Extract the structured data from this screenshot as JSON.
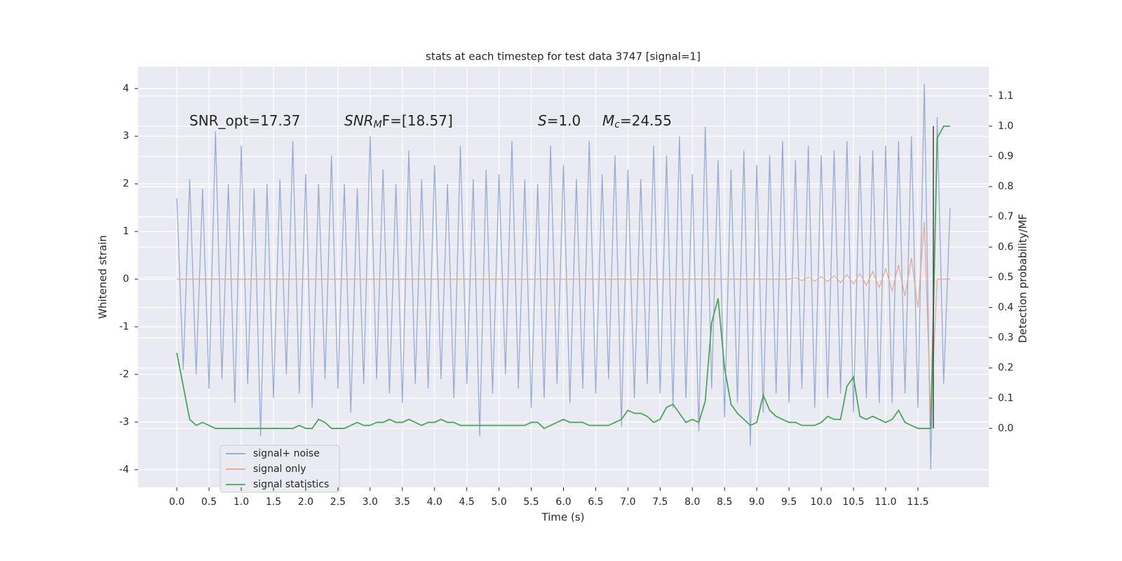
{
  "chart_data": {
    "type": "line",
    "title": "stats at each timestep for test data 3747 [signal=1]",
    "xlabel": "Time (s)",
    "ylabel": "Whitened strain",
    "y2label": "Detection probability/MF",
    "xlim": [
      -0.6,
      12.6
    ],
    "ylim": [
      -4.37,
      4.46
    ],
    "y2lim": [
      -0.195,
      1.197
    ],
    "grid": true,
    "legend": "lower left",
    "xticks": [
      {
        "value": 0,
        "label": "0.0"
      },
      0.5,
      {
        "value": 1,
        "label": "1.0"
      },
      1.5,
      {
        "value": 2,
        "label": "2.0"
      },
      2.5,
      {
        "value": 3,
        "label": "3.0"
      },
      3.5,
      {
        "value": 4,
        "label": "4.0"
      },
      4.5,
      {
        "value": 5,
        "label": "5.0"
      },
      5.5,
      {
        "value": 6,
        "label": "6.0"
      },
      6.5,
      {
        "value": 7,
        "label": "7.0"
      },
      7.5,
      {
        "value": 8,
        "label": "8.0"
      },
      8.5,
      {
        "value": 9,
        "label": "9.0"
      },
      9.5,
      {
        "value": 10,
        "label": "10.0"
      },
      10.5,
      {
        "value": 11,
        "label": "11.0"
      },
      11.5
    ],
    "yticks": [
      -4,
      -3,
      -2,
      -1,
      0,
      1,
      2,
      3,
      4
    ],
    "y2ticks": [
      {
        "value": 0,
        "label": "0.0"
      },
      0.1,
      0.2,
      0.3,
      0.4,
      0.5,
      0.6,
      0.7,
      0.8,
      0.9,
      {
        "value": 1,
        "label": "1.0"
      },
      1.1
    ],
    "annotations": [
      {
        "text": "SNR_opt=17.37"
      },
      {
        "italic": "SNR",
        "sub": "M",
        "text": "F=[18.57]"
      },
      {
        "italic": "S",
        "text": "=1.0"
      },
      {
        "italic": "M",
        "sub": "c",
        "text": "=24.55"
      }
    ],
    "vline": {
      "x": 11.74,
      "ymin": 0,
      "ymax": 1,
      "color": "#444444"
    },
    "x": [
      0.0,
      0.1,
      0.2,
      0.3,
      0.4,
      0.5,
      0.6,
      0.7,
      0.8,
      0.9,
      1.0,
      1.1,
      1.2,
      1.3,
      1.4,
      1.5,
      1.6,
      1.7,
      1.8,
      1.9,
      2.0,
      2.1,
      2.2,
      2.3,
      2.4,
      2.5,
      2.6,
      2.7,
      2.8,
      2.9,
      3.0,
      3.1,
      3.2,
      3.3,
      3.4,
      3.5,
      3.6,
      3.7,
      3.8,
      3.9,
      4.0,
      4.1,
      4.2,
      4.3,
      4.4,
      4.5,
      4.6,
      4.7,
      4.8,
      4.9,
      5.0,
      5.1,
      5.2,
      5.3,
      5.4,
      5.5,
      5.6,
      5.7,
      5.8,
      5.9,
      6.0,
      6.1,
      6.2,
      6.3,
      6.4,
      6.5,
      6.6,
      6.7,
      6.8,
      6.9,
      7.0,
      7.1,
      7.2,
      7.3,
      7.4,
      7.5,
      7.6,
      7.7,
      7.8,
      7.9,
      8.0,
      8.1,
      8.2,
      8.3,
      8.4,
      8.5,
      8.6,
      8.7,
      8.8,
      8.9,
      9.0,
      9.1,
      9.2,
      9.3,
      9.4,
      9.5,
      9.6,
      9.7,
      9.8,
      9.9,
      10.0,
      10.1,
      10.2,
      10.3,
      10.4,
      10.5,
      10.6,
      10.7,
      10.8,
      10.9,
      11.0,
      11.1,
      11.2,
      11.3,
      11.4,
      11.5,
      11.6,
      11.7,
      11.8,
      11.9,
      12.0
    ],
    "series": [
      {
        "name": "signal+ noise",
        "color": "#8fa5d0",
        "values": [
          1.7,
          -1.9,
          2.1,
          -2.0,
          1.9,
          -2.3,
          3.1,
          -2.1,
          2.0,
          -2.6,
          2.8,
          -2.2,
          1.9,
          -3.3,
          2.0,
          -2.5,
          2.1,
          -2.0,
          2.9,
          -2.4,
          2.2,
          -2.7,
          2.0,
          -2.1,
          2.6,
          -2.3,
          2.0,
          -2.8,
          1.9,
          -2.2,
          3.0,
          -2.1,
          2.3,
          -2.4,
          2.0,
          -2.6,
          2.7,
          -2.2,
          2.1,
          -2.3,
          2.4,
          -2.1,
          2.0,
          -2.5,
          2.8,
          -2.2,
          2.1,
          -3.3,
          2.3,
          -2.4,
          2.2,
          -2.0,
          2.9,
          -2.3,
          2.1,
          -2.7,
          2.0,
          -2.5,
          2.8,
          -2.2,
          2.4,
          -2.6,
          2.1,
          -2.3,
          2.9,
          -2.4,
          2.2,
          -2.1,
          2.6,
          -3.1,
          2.3,
          -2.5,
          2.1,
          -2.2,
          2.8,
          -2.4,
          2.6,
          -2.7,
          3.0,
          -2.5,
          2.2,
          -3.2,
          3.2,
          -2.3,
          2.5,
          -2.9,
          2.3,
          -2.6,
          2.7,
          -3.5,
          2.4,
          -2.8,
          2.6,
          -2.4,
          2.9,
          -2.6,
          2.5,
          -2.3,
          2.8,
          -2.7,
          2.6,
          -2.5,
          2.7,
          -2.4,
          2.9,
          -2.8,
          2.6,
          -2.5,
          2.7,
          -2.6,
          2.8,
          -2.6,
          2.9,
          -2.4,
          3.0,
          -2.7,
          4.1,
          -4.0,
          3.4,
          -2.2,
          1.5
        ]
      },
      {
        "name": "signal only",
        "color": "#e3a68c",
        "values": [
          0,
          0,
          0,
          0,
          0,
          0,
          0,
          0,
          0,
          0,
          0,
          0,
          0,
          0,
          0,
          0,
          0,
          0,
          0,
          0,
          0,
          0,
          0,
          0,
          0,
          0,
          0,
          0,
          0,
          0,
          0,
          0,
          0,
          0,
          0,
          0,
          0,
          0,
          0,
          0,
          0,
          0,
          0,
          0,
          0,
          0,
          0,
          0,
          0,
          0,
          0,
          0,
          0,
          0,
          0,
          0,
          0,
          0,
          0,
          0,
          0,
          0,
          0,
          0,
          0,
          0,
          0,
          0,
          0,
          0,
          0,
          0,
          0,
          0,
          0,
          0,
          0,
          0,
          0,
          0,
          0,
          0,
          0,
          0,
          0,
          0,
          0,
          0,
          0,
          0,
          0,
          0,
          0,
          0,
          0,
          0,
          0.03,
          -0.03,
          0.04,
          -0.04,
          0.05,
          -0.05,
          0.07,
          -0.07,
          0.09,
          -0.1,
          0.12,
          -0.13,
          0.16,
          -0.18,
          0.22,
          -0.25,
          0.3,
          -0.36,
          0.45,
          -0.6,
          1.2,
          -2.9,
          0,
          0,
          0
        ]
      },
      {
        "name": "signal statistics",
        "color": "#4ca55c",
        "axis": "y2",
        "values": [
          0.25,
          0.14,
          0.03,
          0.01,
          0.02,
          0.01,
          0.0,
          0.0,
          0.0,
          0.0,
          0.0,
          0.0,
          0.0,
          0.0,
          0.0,
          0.0,
          0.0,
          0.0,
          0.0,
          0.01,
          0.0,
          0.0,
          0.03,
          0.02,
          0.0,
          0.0,
          0.0,
          0.01,
          0.02,
          0.01,
          0.01,
          0.02,
          0.02,
          0.03,
          0.02,
          0.02,
          0.03,
          0.02,
          0.01,
          0.02,
          0.02,
          0.03,
          0.02,
          0.02,
          0.01,
          0.01,
          0.01,
          0.01,
          0.01,
          0.01,
          0.01,
          0.01,
          0.01,
          0.01,
          0.01,
          0.02,
          0.02,
          0.0,
          0.01,
          0.02,
          0.03,
          0.02,
          0.02,
          0.02,
          0.01,
          0.01,
          0.01,
          0.01,
          0.02,
          0.03,
          0.06,
          0.05,
          0.05,
          0.04,
          0.02,
          0.03,
          0.07,
          0.08,
          0.05,
          0.02,
          0.03,
          0.02,
          0.09,
          0.35,
          0.43,
          0.2,
          0.08,
          0.05,
          0.03,
          0.01,
          0.02,
          0.11,
          0.06,
          0.04,
          0.03,
          0.02,
          0.02,
          0.01,
          0.01,
          0.01,
          0.02,
          0.04,
          0.03,
          0.03,
          0.14,
          0.17,
          0.04,
          0.03,
          0.04,
          0.03,
          0.02,
          0.03,
          0.06,
          0.02,
          0.01,
          0.0,
          0.0,
          0.0,
          0.96,
          1.0,
          1.0
        ]
      }
    ]
  }
}
